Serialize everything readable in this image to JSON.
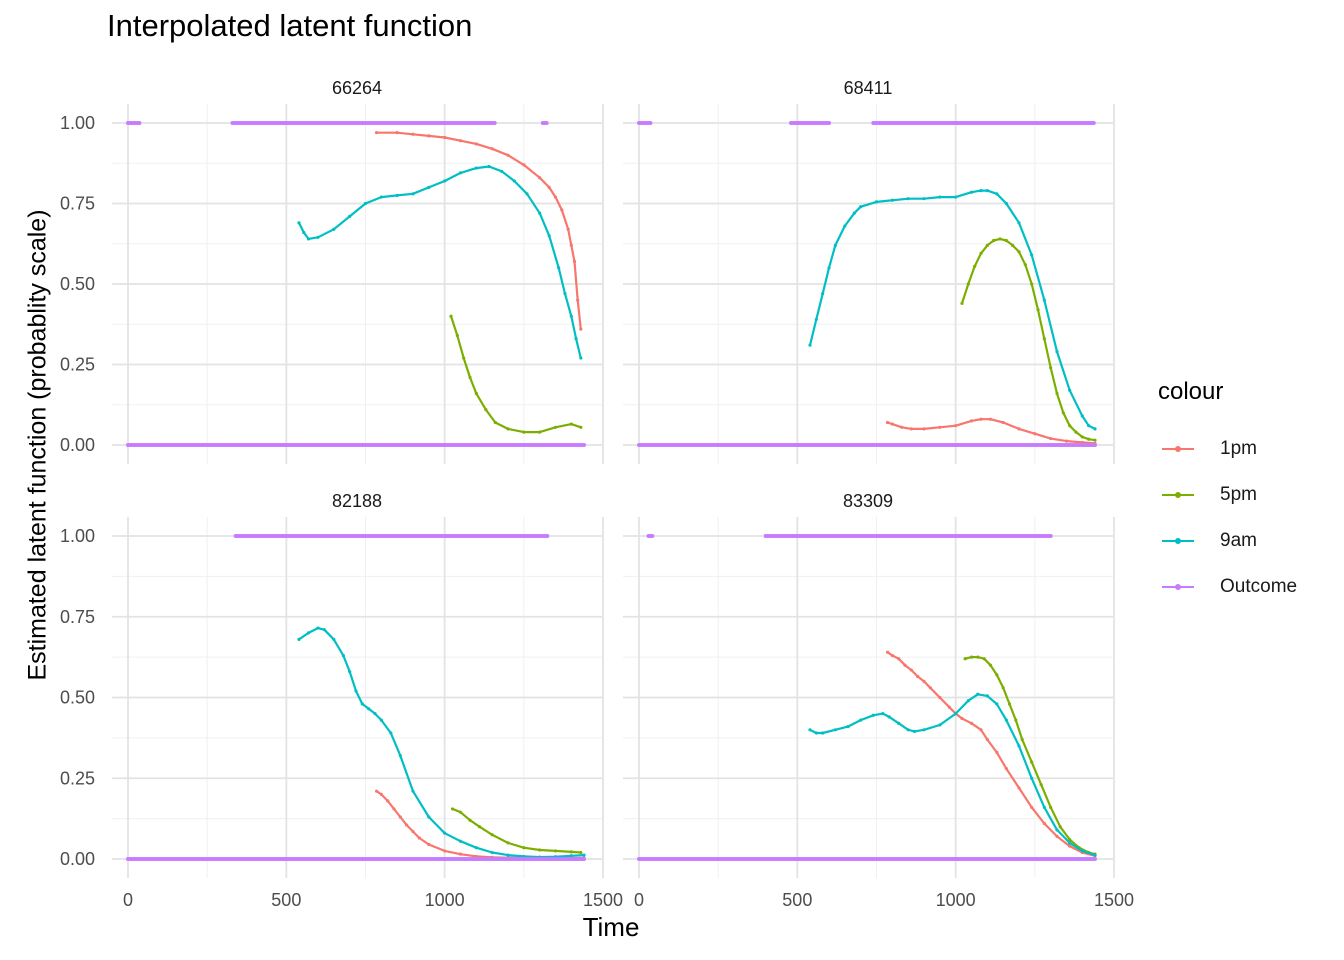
{
  "title": "Interpolated latent function",
  "xlabel": "Time",
  "ylabel": "Estimated latent function (probablity scale)",
  "legend": {
    "title": "colour",
    "items": [
      {
        "label": "1pm",
        "color": "#F8766D"
      },
      {
        "label": "5pm",
        "color": "#7CAE00"
      },
      {
        "label": "9am",
        "color": "#00BFC4"
      },
      {
        "label": "Outcome",
        "color": "#C77CFF"
      }
    ]
  },
  "chart_data": {
    "type": "line",
    "x_ticks": [
      "0",
      "500",
      "1000",
      "1500"
    ],
    "y_ticks": [
      "0.00",
      "0.25",
      "0.50",
      "0.75",
      "1.00"
    ],
    "xlim": [
      0,
      1440
    ],
    "ylim": [
      0,
      1
    ],
    "grid": true,
    "legend_position": "right",
    "panels": [
      {
        "name": "66264",
        "series": [
          {
            "name": "1pm",
            "x": [
              785,
              850,
              900,
              950,
              1000,
              1050,
              1100,
              1150,
              1200,
              1250,
              1300,
              1330,
              1350,
              1370,
              1390,
              1400,
              1410,
              1420,
              1430
            ],
            "y": [
              0.97,
              0.97,
              0.965,
              0.96,
              0.955,
              0.945,
              0.935,
              0.92,
              0.9,
              0.87,
              0.83,
              0.8,
              0.77,
              0.73,
              0.67,
              0.62,
              0.57,
              0.45,
              0.36
            ]
          },
          {
            "name": "5pm",
            "x": [
              1020,
              1040,
              1060,
              1080,
              1100,
              1130,
              1160,
              1200,
              1250,
              1300,
              1350,
              1400,
              1430
            ],
            "y": [
              0.4,
              0.34,
              0.27,
              0.21,
              0.16,
              0.11,
              0.07,
              0.05,
              0.04,
              0.04,
              0.055,
              0.065,
              0.055
            ]
          },
          {
            "name": "9am",
            "x": [
              540,
              555,
              570,
              600,
              650,
              700,
              750,
              800,
              850,
              900,
              950,
              1000,
              1050,
              1100,
              1140,
              1180,
              1220,
              1260,
              1300,
              1330,
              1360,
              1380,
              1400,
              1415,
              1430
            ],
            "y": [
              0.69,
              0.66,
              0.64,
              0.645,
              0.67,
              0.71,
              0.75,
              0.77,
              0.775,
              0.78,
              0.8,
              0.82,
              0.845,
              0.86,
              0.865,
              0.85,
              0.82,
              0.78,
              0.72,
              0.65,
              0.55,
              0.47,
              0.4,
              0.33,
              0.27
            ]
          },
          {
            "name": "Outcome",
            "ones": [
              [
                0,
                40
              ],
              [
                330,
                1160
              ],
              [
                1310,
                1325
              ]
            ],
            "zeros": [
              [
                0,
                1440
              ]
            ]
          }
        ]
      },
      {
        "name": "68411",
        "series": [
          {
            "name": "1pm",
            "x": [
              785,
              800,
              830,
              860,
              900,
              950,
              1000,
              1050,
              1080,
              1110,
              1150,
              1200,
              1250,
              1300,
              1350,
              1400,
              1440
            ],
            "y": [
              0.07,
              0.065,
              0.055,
              0.05,
              0.05,
              0.055,
              0.06,
              0.075,
              0.08,
              0.08,
              0.07,
              0.05,
              0.035,
              0.02,
              0.012,
              0.008,
              0.005
            ]
          },
          {
            "name": "5pm",
            "x": [
              1020,
              1040,
              1060,
              1080,
              1100,
              1120,
              1140,
              1160,
              1180,
              1200,
              1220,
              1240,
              1260,
              1280,
              1300,
              1320,
              1340,
              1360,
              1380,
              1400,
              1420,
              1440
            ],
            "y": [
              0.44,
              0.5,
              0.555,
              0.595,
              0.62,
              0.635,
              0.64,
              0.635,
              0.62,
              0.6,
              0.56,
              0.5,
              0.42,
              0.33,
              0.24,
              0.16,
              0.1,
              0.06,
              0.04,
              0.025,
              0.018,
              0.015
            ]
          },
          {
            "name": "9am",
            "x": [
              540,
              560,
              580,
              600,
              620,
              650,
              680,
              700,
              750,
              800,
              850,
              900,
              950,
              1000,
              1050,
              1080,
              1100,
              1130,
              1160,
              1200,
              1240,
              1280,
              1320,
              1360,
              1400,
              1420,
              1440
            ],
            "y": [
              0.31,
              0.39,
              0.47,
              0.55,
              0.62,
              0.68,
              0.72,
              0.74,
              0.755,
              0.76,
              0.765,
              0.765,
              0.77,
              0.77,
              0.785,
              0.79,
              0.79,
              0.78,
              0.75,
              0.69,
              0.59,
              0.45,
              0.29,
              0.17,
              0.09,
              0.06,
              0.05
            ]
          },
          {
            "name": "Outcome",
            "ones": [
              [
                0,
                40
              ],
              [
                480,
                600
              ],
              [
                740,
                1440
              ]
            ],
            "zeros": [
              [
                0,
                1440
              ]
            ]
          }
        ]
      },
      {
        "name": "82188",
        "series": [
          {
            "name": "1pm",
            "x": [
              785,
              800,
              820,
              840,
              860,
              880,
              900,
              920,
              950,
              1000,
              1050,
              1100,
              1150,
              1200,
              1300,
              1440
            ],
            "y": [
              0.21,
              0.2,
              0.18,
              0.155,
              0.13,
              0.105,
              0.085,
              0.065,
              0.045,
              0.025,
              0.015,
              0.008,
              0.005,
              0.004,
              0.003,
              0.003
            ]
          },
          {
            "name": "5pm",
            "x": [
              1025,
              1050,
              1080,
              1110,
              1150,
              1200,
              1250,
              1300,
              1350,
              1400,
              1430
            ],
            "y": [
              0.155,
              0.145,
              0.12,
              0.1,
              0.075,
              0.05,
              0.035,
              0.028,
              0.025,
              0.022,
              0.02
            ]
          },
          {
            "name": "9am",
            "x": [
              540,
              570,
              600,
              620,
              650,
              680,
              700,
              720,
              740,
              760,
              780,
              800,
              830,
              860,
              900,
              950,
              1000,
              1050,
              1100,
              1150,
              1200,
              1250,
              1300,
              1350,
              1400,
              1440
            ],
            "y": [
              0.68,
              0.7,
              0.715,
              0.71,
              0.68,
              0.63,
              0.58,
              0.52,
              0.48,
              0.465,
              0.45,
              0.43,
              0.39,
              0.32,
              0.21,
              0.13,
              0.08,
              0.055,
              0.035,
              0.02,
              0.012,
              0.008,
              0.006,
              0.007,
              0.01,
              0.012
            ]
          },
          {
            "name": "Outcome",
            "ones": [
              [
                340,
                1325
              ]
            ],
            "zeros": [
              [
                0,
                1440
              ]
            ]
          }
        ]
      },
      {
        "name": "83309",
        "series": [
          {
            "name": "1pm",
            "x": [
              785,
              800,
              820,
              840,
              860,
              880,
              900,
              920,
              950,
              980,
              1000,
              1020,
              1050,
              1080,
              1100,
              1130,
              1160,
              1200,
              1240,
              1280,
              1320,
              1360,
              1400,
              1440
            ],
            "y": [
              0.64,
              0.63,
              0.62,
              0.6,
              0.585,
              0.565,
              0.55,
              0.53,
              0.5,
              0.47,
              0.45,
              0.435,
              0.42,
              0.4,
              0.37,
              0.33,
              0.28,
              0.22,
              0.16,
              0.11,
              0.07,
              0.04,
              0.02,
              0.01
            ]
          },
          {
            "name": "5pm",
            "x": [
              1030,
              1050,
              1070,
              1090,
              1110,
              1130,
              1150,
              1170,
              1190,
              1210,
              1240,
              1270,
              1300,
              1330,
              1360,
              1390,
              1420,
              1440
            ],
            "y": [
              0.62,
              0.625,
              0.625,
              0.62,
              0.6,
              0.57,
              0.53,
              0.48,
              0.43,
              0.37,
              0.3,
              0.23,
              0.16,
              0.1,
              0.06,
              0.035,
              0.02,
              0.015
            ]
          },
          {
            "name": "9am",
            "x": [
              540,
              560,
              580,
              620,
              660,
              700,
              740,
              770,
              790,
              820,
              850,
              870,
              900,
              950,
              1000,
              1040,
              1070,
              1100,
              1130,
              1160,
              1200,
              1240,
              1280,
              1320,
              1360,
              1400,
              1440
            ],
            "y": [
              0.4,
              0.39,
              0.39,
              0.4,
              0.41,
              0.43,
              0.445,
              0.45,
              0.44,
              0.42,
              0.4,
              0.395,
              0.4,
              0.415,
              0.45,
              0.49,
              0.51,
              0.505,
              0.48,
              0.43,
              0.35,
              0.25,
              0.16,
              0.09,
              0.05,
              0.025,
              0.012
            ]
          },
          {
            "name": "Outcome",
            "ones": [
              [
                30,
                45
              ],
              [
                400,
                1300
              ]
            ],
            "zeros": [
              [
                0,
                1440
              ]
            ]
          }
        ]
      }
    ]
  }
}
